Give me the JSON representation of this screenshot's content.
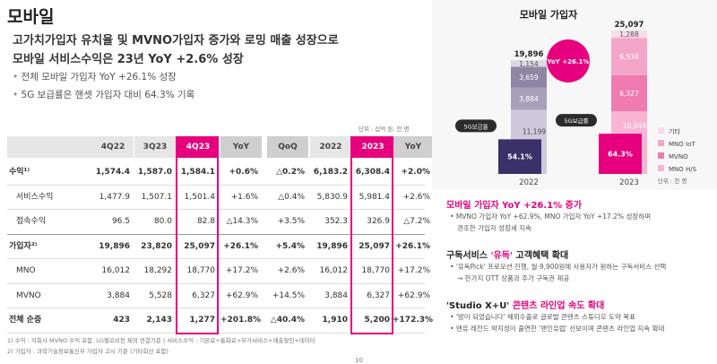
{
  "header": {
    "title": "모바일",
    "lines": [
      "고가치가입자 유치율 및 MVNO가입자 증가와 로밍 매출 성장으로",
      "모바일 서비스수익은 23년 YoY +2.6% 성장"
    ],
    "bullets": [
      "전체 모바일 가입자 YoY +26.1% 성장",
      "5G 보급률은 핸셋 가입자 대비 64.3% 기록"
    ]
  },
  "table": {
    "unit": "단위 : 십억 원, 천 명",
    "columns": [
      "4Q22",
      "3Q23",
      "4Q23",
      "YoY",
      "QoQ",
      "2022",
      "2023",
      "YoY"
    ],
    "rows": [
      {
        "label": "수익¹⁾",
        "bold": true,
        "cells": [
          "1,574.4",
          "1,587.0",
          "1,584.1",
          "+0.6%",
          "△0.2%",
          "6,183.2",
          "6,308.4",
          "+2.0%"
        ]
      },
      {
        "label": "서비스수익",
        "bold": false,
        "cells": [
          "1,477.9",
          "1,507.1",
          "1,501.4",
          "+1.6%",
          "△0.4%",
          "5,830.9",
          "5,981.4",
          "+2.6%"
        ]
      },
      {
        "label": "접속수익",
        "bold": false,
        "cells": [
          "96.5",
          "80.0",
          "82.8",
          "△14.3%",
          "+3.5%",
          "352.3",
          "326.9",
          "△7.2%"
        ]
      },
      {
        "label": "가입자²⁾",
        "bold": true,
        "cells": [
          "19,896",
          "23,820",
          "25,097",
          "+26.1%",
          "+5.4%",
          "19,896",
          "25,097",
          "+26.1%"
        ]
      },
      {
        "label": "MNO",
        "bold": false,
        "cells": [
          "16,012",
          "18,292",
          "18,770",
          "+17.2%",
          "+2.6%",
          "16,012",
          "18,770",
          "+17.2%"
        ]
      },
      {
        "label": "MVNO",
        "bold": false,
        "cells": [
          "3,884",
          "5,528",
          "6,327",
          "+62.9%",
          "+14.5%",
          "3,884",
          "6,327",
          "+62.9%"
        ]
      },
      {
        "label": "전체 순증",
        "bold": true,
        "cells": [
          "423",
          "2,143",
          "1,277",
          "+201.8%",
          "△40.4%",
          "1,910",
          "5,200",
          "+172.3%"
        ]
      }
    ],
    "footnotes": [
      "1) 수익 : 자회사 MVNO 수익 포함, LG헬로비전 제외 연결기준 | 서비스수익 : 기본료+통화료+부가서비스+매출할인+데이터",
      "2) 가입자 : 과학기술정보통신부 가입자 고시 기준 (기타회선 포함)"
    ]
  },
  "page_number": "10",
  "chart_data": {
    "type": "stacked-bar",
    "title": "모바일 가입자",
    "categories": [
      "2022",
      "2023"
    ],
    "series": [
      {
        "name": "MNO H/S",
        "color": [
          "#cfc9de",
          "#f7b5d3"
        ],
        "values": [
          11199,
          10944
        ],
        "value_labels": [
          "11,199",
          "10,944"
        ]
      },
      {
        "name": "MVNO",
        "color": [
          "#a7a2b9",
          "#ef7bb0"
        ],
        "values": [
          3884,
          6327
        ],
        "value_labels": [
          "3,884",
          "6,327"
        ]
      },
      {
        "name": "MNO IoT",
        "color": [
          "#8e87a3",
          "#f4a6c9"
        ],
        "values": [
          3659,
          6538
        ],
        "value_labels": [
          "3,659",
          "6,538"
        ]
      },
      {
        "name": "기타",
        "color": [
          "#dcd8e4",
          "#f9dce9"
        ],
        "values": [
          1154,
          1288
        ],
        "value_labels": [
          "1,154",
          "1,288"
        ]
      }
    ],
    "totals": {
      "values": [
        19896,
        25097
      ],
      "value_labels": [
        "19,896",
        "25,097"
      ]
    },
    "fiveg": {
      "label": "5G보급률",
      "color": [
        "#3b3169",
        "#e6007e"
      ],
      "values": [
        54.1,
        64.3
      ],
      "value_labels": [
        "54.1%",
        "64.3%"
      ]
    },
    "annotation": "YoY +26.1%",
    "unit": "단위 : 천 명"
  },
  "sections": [
    {
      "title": [
        "모바일 가입자 YoY +26.1% 증가"
      ],
      "bullets": [
        "MVNO 가입자 YoY +62.9%, MNO 가입자 YoY +17.2% 성장하며",
        "견조한 가입자 성장세 지속"
      ]
    },
    {
      "title": [
        "구독서비스 ",
        "'유독'",
        " 고객혜택 확대"
      ],
      "bullets": [
        "'유독Pick' 프로모션 진행, 월 9,900원에 사용자가 원하는 구독서비스 선택",
        "→ 한가지 OTT 상품과 추가 구독권 제공"
      ]
    },
    {
      "title": [
        "'Studio X+U' ",
        "콘텐츠 라인업 속도 확대"
      ],
      "bullets": [
        "'방이 되었습니다' 해외수출로 글로벌 콘텐츠 스튜디오 도약 목표",
        "맨유 레전드 박지성이 출연한 '맨인유럽' 선보이며 콘텐츠 라인업 지속 확대"
      ]
    }
  ]
}
